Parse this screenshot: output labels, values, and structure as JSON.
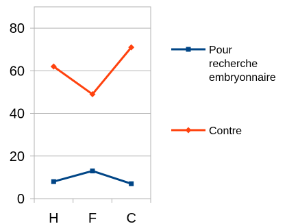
{
  "chart_data": {
    "type": "line",
    "categories": [
      "H",
      "F",
      "C"
    ],
    "ylim": [
      0,
      90
    ],
    "yticks": [
      0,
      20,
      40,
      60,
      80
    ],
    "grid": "horizontal",
    "legend_position": "right",
    "series": [
      {
        "name": "Pour recherche embryonnaire",
        "name_lines": [
          "Pour",
          "recherche",
          "embryonnaire"
        ],
        "values": [
          8,
          13,
          7
        ],
        "color": "#004586",
        "marker": "square"
      },
      {
        "name": "Contre",
        "name_lines": [
          "Contre"
        ],
        "values": [
          62,
          49,
          71
        ],
        "color": "#ff420e",
        "marker": "diamond"
      }
    ]
  }
}
